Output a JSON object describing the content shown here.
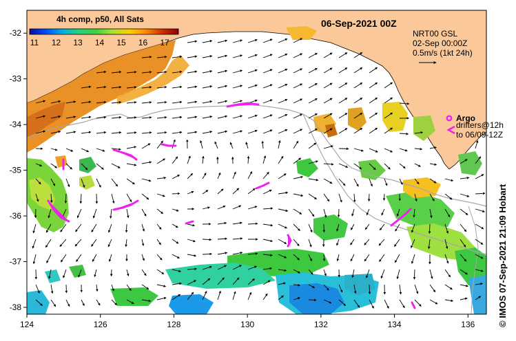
{
  "title": "06-Sep-2021 00Z",
  "colorbar": {
    "title": "4h comp, p50, All Sats",
    "ticks": [
      11,
      12,
      13,
      14,
      15,
      16,
      17
    ],
    "stops": [
      "#0a0a9a",
      "#0050ff",
      "#00b0e0",
      "#2ad27a",
      "#3ed23e",
      "#a8e030",
      "#ffd000",
      "#ff8c00",
      "#d03000",
      "#8b0000"
    ]
  },
  "info": {
    "line1": "NRT00 GSL",
    "line2": "02-Sep 00:00Z",
    "line3": "0.5m/s (1kt 24h)"
  },
  "legend": {
    "argo": "Argo",
    "drifters1": "drifters@12h",
    "drifters2": "to 06/09-12Z"
  },
  "credit": "© IMOS 07-Sep-2021 21:09 Hobart",
  "axes": {
    "x_label_values": [
      124,
      126,
      128,
      130,
      132,
      134,
      136
    ],
    "y_label_values": [
      -32,
      -33,
      -34,
      -35,
      -36,
      -37,
      -38
    ],
    "lon_range": [
      124,
      136.5
    ],
    "lat_range": [
      -31.5,
      -38.15
    ]
  },
  "colors": {
    "land": "#fbc999",
    "ocean": "#ffffff",
    "argo": "#ee22ee",
    "frame": "#000000"
  }
}
